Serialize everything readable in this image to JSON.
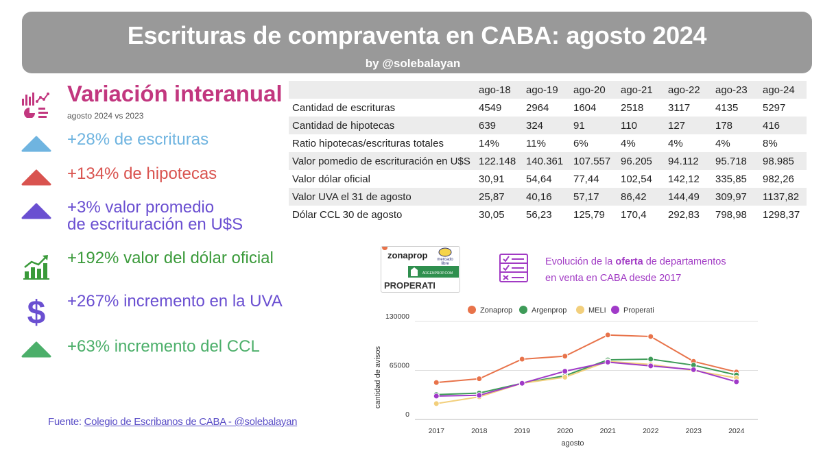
{
  "header": {
    "title": "Escrituras de compraventa en CABA:  agosto 2024",
    "byline": "by @solebalayan"
  },
  "left": {
    "title": "Variación  interanual",
    "subtitle": "agosto 2024 vs 2023",
    "stats": [
      {
        "line1": "+28% de escrituras",
        "line2": "",
        "color": "#6fb4e0",
        "icon": "triangle-up-icon"
      },
      {
        "line1": "+134% de hipotecas",
        "line2": "",
        "color": "#d9534f",
        "icon": "triangle-up-icon"
      },
      {
        "line1": "+3% valor promedio",
        "line2": "de escrituración en U$S",
        "color": "#6a4fd1",
        "icon": "triangle-up-icon"
      },
      {
        "line1": "+192% valor del dólar oficial",
        "line2": "",
        "color": "#3a9a3a",
        "icon": "growth-bar-chart-icon"
      },
      {
        "line1": "+267% incremento en la UVA",
        "line2": "",
        "color": "#6a4fd1",
        "icon": "dollar-sign-icon"
      },
      {
        "line1": "+63% incremento del CCL",
        "line2": "",
        "color": "#4caf6a",
        "icon": "triangle-up-icon"
      }
    ],
    "colors": {
      "title": "#c2377f",
      "header_icon": "#c2377f"
    }
  },
  "table": {
    "headers": [
      "",
      "ago-18",
      "ago-19",
      "ago-20",
      "ago-21",
      "ago-22",
      "ago-23",
      "ago-24"
    ],
    "rows": [
      [
        "Cantidad de escrituras",
        "4549",
        "2964",
        "1604",
        "2518",
        "3117",
        "4135",
        "5297"
      ],
      [
        "Cantidad de hipotecas",
        "639",
        "324",
        "91",
        "110",
        "127",
        "178",
        "416"
      ],
      [
        "Ratio hipotecas/escrituras totales",
        "14%",
        "11%",
        "6%",
        "4%",
        "4%",
        "4%",
        "8%"
      ],
      [
        "Valor pomedio de escrituración en U$S",
        "122.148",
        "140.361",
        "107.557",
        "96.205",
        "94.112",
        "95.718",
        "98.985"
      ],
      [
        "Valor dólar oficial",
        "30,91",
        "54,64",
        "77,44",
        "102,54",
        "142,12",
        "335,85",
        "982,26"
      ],
      [
        "Valor UVA el 31 de agosto",
        "25,87",
        "40,16",
        "57,17",
        "86,42",
        "144,49",
        "309,97",
        "1137,82"
      ],
      [
        "Dólar CCL 30 de agosto",
        "30,05",
        "56,23",
        "125,79",
        "170,4",
        "292,83",
        "798,98",
        "1298,37"
      ]
    ]
  },
  "logos": {
    "zonaprop": "zonaprop",
    "mercadolibre_line1": "mercado",
    "mercadolibre_line2": "libre",
    "argenprop": "ARGENPROP.COM",
    "properati": "PROPERATI"
  },
  "evolution": {
    "line1_pre": "Evolución de la ",
    "line1_bold": "oferta",
    "line1_post": " de departamentos",
    "line2": "en venta en CABA desde 2017",
    "icon": "checklist-icon"
  },
  "source": {
    "prefix": "Fuente: ",
    "link": "Colegio de  Escribanos de CABA  -  @solebalayan"
  },
  "chart_data": {
    "type": "line",
    "title": "",
    "xlabel": "agosto",
    "ylabel": "cantidad de avisos",
    "x": [
      "2017",
      "2018",
      "2019",
      "2020",
      "2021",
      "2022",
      "2023",
      "2024"
    ],
    "ylim": [
      0,
      130000
    ],
    "yticks": [
      "0",
      "65000",
      "130000"
    ],
    "legend_position": "top",
    "grid": "horizontal",
    "series": [
      {
        "name": "Zonaprop",
        "color": "#e8734a",
        "values": [
          49000,
          54000,
          80000,
          84000,
          112000,
          110000,
          77000,
          63000
        ]
      },
      {
        "name": "Argenprop",
        "color": "#3e9b58",
        "values": [
          33000,
          35000,
          48000,
          58000,
          79000,
          80000,
          72000,
          59000
        ]
      },
      {
        "name": "MELI",
        "color": "#f2cf7c",
        "values": [
          21000,
          30000,
          48000,
          56000,
          77000,
          73000,
          65000,
          55000
        ]
      },
      {
        "name": "Properati",
        "color": "#a03ac8",
        "values": [
          31000,
          32000,
          48000,
          64000,
          76000,
          71000,
          66000,
          50000
        ]
      }
    ]
  }
}
